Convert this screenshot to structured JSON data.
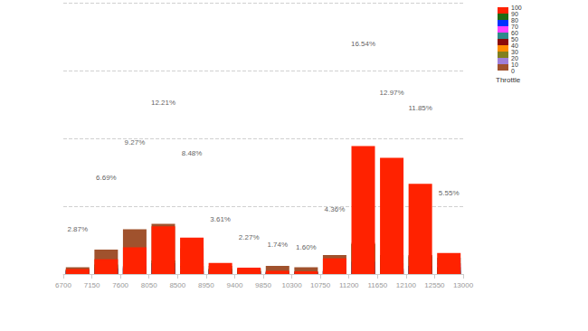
{
  "chart_data": {
    "type": "bar",
    "stacked": true,
    "grid": true,
    "tick_labels": "x",
    "bins": [
      6700,
      7150,
      7600,
      8050,
      8500,
      8950,
      9400,
      9850,
      10300,
      10750,
      11200,
      11650,
      12100,
      12550,
      13000
    ],
    "xlim": [
      6700,
      13000
    ],
    "xticks": [
      6700,
      7150,
      7600,
      8050,
      8500,
      8950,
      9400,
      9850,
      10300,
      10750,
      11200,
      11650,
      12100,
      12550,
      13000
    ],
    "ylim": [
      0,
      20
    ],
    "yticks": [
      0,
      5,
      10,
      15,
      20
    ],
    "series": [
      {
        "color": "#a0522d",
        "values": [
          0.5,
          1.8,
          3.3,
          3.7,
          1.9,
          0.6,
          0.4,
          0.6,
          0.5,
          1.4,
          2.3,
          0.8,
          0.6,
          0.8
        ]
      },
      {
        "color": "#9f7fd9",
        "values": [
          0.3,
          0.6,
          0.6,
          0.5,
          1.1,
          0.3,
          0.2,
          0.1,
          0.1,
          0.2,
          0.3,
          0.2,
          0.2,
          0.1
        ]
      },
      {
        "color": "#808020",
        "values": [
          0.3,
          0.5,
          0.5,
          0.8,
          0.2,
          0.3,
          0.2,
          0.1,
          0.1,
          0.2,
          0.2,
          0.2,
          0.2,
          0.1
        ]
      },
      {
        "color": "#ff8c00",
        "values": [
          0.2,
          0.4,
          0.5,
          0.6,
          0.8,
          0.2,
          0.1,
          0.1,
          0.1,
          0.2,
          0.3,
          0.4,
          0.3,
          0.1
        ]
      },
      {
        "color": "#8b0a0a",
        "values": [
          0.3,
          0.4,
          0.4,
          0.4,
          0.6,
          0.3,
          0.2,
          0.1,
          0.1,
          0.2,
          0.2,
          0.3,
          1.4,
          0.2
        ]
      },
      {
        "color": "#2e8b8b",
        "values": [
          0.2,
          0.4,
          0.4,
          0.4,
          0.5,
          0.3,
          0.2,
          0.2,
          0.2,
          0.2,
          0.2,
          0.3,
          0.3,
          1.2
        ]
      },
      {
        "color": "#ff40ff",
        "values": [
          0.2,
          0.4,
          0.5,
          0.5,
          0.3,
          0.2,
          0.1,
          0.1,
          0.1,
          0.3,
          0.5,
          0.4,
          0.3,
          0.7
        ]
      },
      {
        "color": "#0030ff",
        "values": [
          0.2,
          0.4,
          0.5,
          0.8,
          0.2,
          0.2,
          0.1,
          0.1,
          0.1,
          0.2,
          0.9,
          0.4,
          0.6,
          0.3
        ]
      },
      {
        "color": "#1e6b12",
        "values": [
          0.3,
          0.7,
          0.6,
          1.0,
          0.2,
          0.4,
          0.3,
          0.1,
          0.1,
          0.3,
          2.2,
          1.4,
          1.3,
          0.5
        ]
      },
      {
        "color": "#ff2200",
        "values": [
          0.37,
          1.09,
          1.97,
          3.51,
          2.68,
          0.81,
          0.47,
          0.24,
          0.2,
          1.16,
          9.44,
          8.57,
          6.65,
          1.55
        ]
      }
    ],
    "totals": {
      "values": [
        2.87,
        6.69,
        9.27,
        12.21,
        8.48,
        3.61,
        2.27,
        1.74,
        1.6,
        4.36,
        16.54,
        12.97,
        11.85,
        5.55
      ],
      "value_labels": [
        "2.87%",
        "6.69%",
        "9.27%",
        "12.21%",
        "8.48%",
        "3.61%",
        "2.27%",
        "1.74%",
        "1.60%",
        "4.36%",
        "16.54%",
        "12.97%",
        "11.85%",
        "5.55%"
      ]
    },
    "colorbar": {
      "title": "Throttle",
      "range": [
        0,
        100
      ],
      "ticks": [
        0,
        10,
        20,
        30,
        40,
        50,
        60,
        70,
        80,
        90,
        100
      ]
    }
  }
}
